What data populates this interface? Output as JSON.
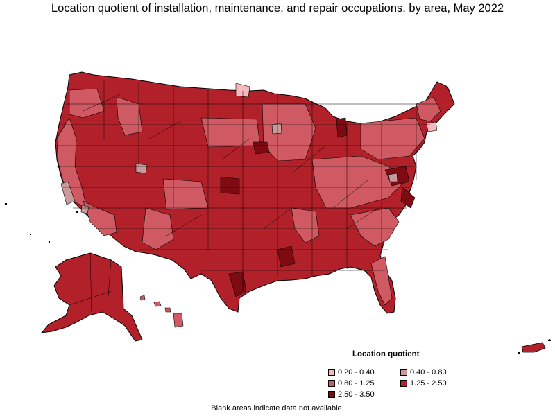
{
  "title": "Location quotient of installation, maintenance, and repair occupations, by area, May 2022",
  "legend": {
    "title": "Location quotient",
    "items": [
      {
        "label": "0.20 - 0.40",
        "color": "#f4b8bd"
      },
      {
        "label": "0.40 - 0.80",
        "color": "#c99a9c"
      },
      {
        "label": "0.80 - 1.25",
        "color": "#d05a63"
      },
      {
        "label": "1.25 - 2.50",
        "color": "#b2202a"
      },
      {
        "label": "2.50 - 3.50",
        "color": "#7e0a12"
      }
    ]
  },
  "footnote": "Blank areas indicate data not available.",
  "colors": {
    "border": "#000000",
    "background": "#ffffff"
  }
}
